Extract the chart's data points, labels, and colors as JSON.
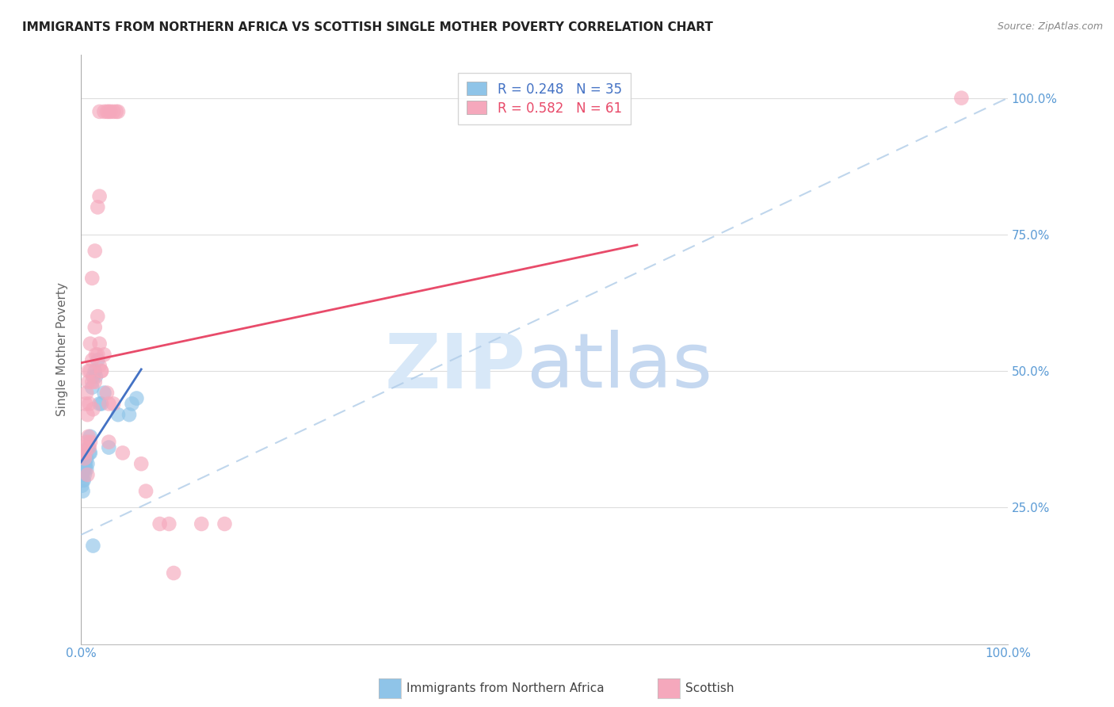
{
  "title": "IMMIGRANTS FROM NORTHERN AFRICA VS SCOTTISH SINGLE MOTHER POVERTY CORRELATION CHART",
  "source": "Source: ZipAtlas.com",
  "ylabel": "Single Mother Poverty",
  "legend_label1": "Immigrants from Northern Africa",
  "legend_label2": "Scottish",
  "R1": 0.248,
  "N1": 35,
  "R2": 0.582,
  "N2": 61,
  "color_blue": "#8FC4E8",
  "color_pink": "#F5A8BC",
  "color_blue_line": "#4472C4",
  "color_pink_line": "#E84B6A",
  "color_dashed": "#B0CCE8",
  "blue_points_x": [
    0.001,
    0.002,
    0.002,
    0.003,
    0.003,
    0.003,
    0.004,
    0.004,
    0.004,
    0.005,
    0.005,
    0.005,
    0.006,
    0.006,
    0.007,
    0.007,
    0.008,
    0.008,
    0.009,
    0.01,
    0.01,
    0.012,
    0.013,
    0.014,
    0.015,
    0.016,
    0.018,
    0.02,
    0.022,
    0.025,
    0.028,
    0.03,
    0.04,
    0.052,
    0.06
  ],
  "blue_points_y": [
    0.315,
    0.305,
    0.285,
    0.335,
    0.305,
    0.325,
    0.295,
    0.325,
    0.315,
    0.335,
    0.345,
    0.315,
    0.305,
    0.325,
    0.355,
    0.325,
    0.345,
    0.315,
    0.365,
    0.335,
    0.385,
    0.465,
    0.485,
    0.475,
    0.505,
    0.495,
    0.515,
    0.425,
    0.445,
    0.465,
    0.275,
    0.195,
    0.175,
    0.425,
    0.305
  ],
  "pink_points_x": [
    0.002,
    0.002,
    0.003,
    0.003,
    0.003,
    0.004,
    0.004,
    0.005,
    0.005,
    0.006,
    0.006,
    0.007,
    0.008,
    0.008,
    0.009,
    0.01,
    0.011,
    0.012,
    0.013,
    0.015,
    0.016,
    0.018,
    0.019,
    0.02,
    0.022,
    0.025,
    0.028,
    0.03,
    0.032,
    0.035,
    0.038,
    0.04,
    0.045,
    0.05,
    0.055,
    0.06,
    0.065,
    0.07,
    0.075,
    0.08,
    0.085,
    0.09,
    0.095,
    0.1,
    0.11,
    0.12,
    0.13,
    0.155,
    0.175,
    0.195,
    0.22,
    0.24,
    0.26,
    0.27,
    0.28,
    0.3,
    0.96,
    0.002,
    0.002,
    0.003,
    0.003
  ],
  "pink_points_y": [
    0.345,
    0.325,
    0.365,
    0.335,
    0.34,
    0.305,
    0.345,
    0.355,
    0.325,
    0.375,
    0.345,
    0.315,
    0.385,
    0.355,
    0.365,
    0.505,
    0.475,
    0.485,
    0.435,
    0.485,
    0.455,
    0.585,
    0.525,
    0.555,
    0.505,
    0.535,
    0.385,
    0.375,
    0.355,
    0.425,
    0.445,
    0.465,
    0.505,
    0.485,
    0.435,
    0.455,
    0.335,
    0.355,
    0.555,
    0.455,
    0.425,
    0.285,
    0.225,
    0.135,
    0.275,
    0.275,
    0.675,
    0.225,
    0.225,
    0.225,
    0.225,
    0.225,
    0.275,
    0.275,
    0.275,
    0.275,
    1.0,
    0.975,
    0.975,
    0.975,
    0.975
  ],
  "figsize": [
    14.06,
    8.92
  ],
  "dpi": 100
}
